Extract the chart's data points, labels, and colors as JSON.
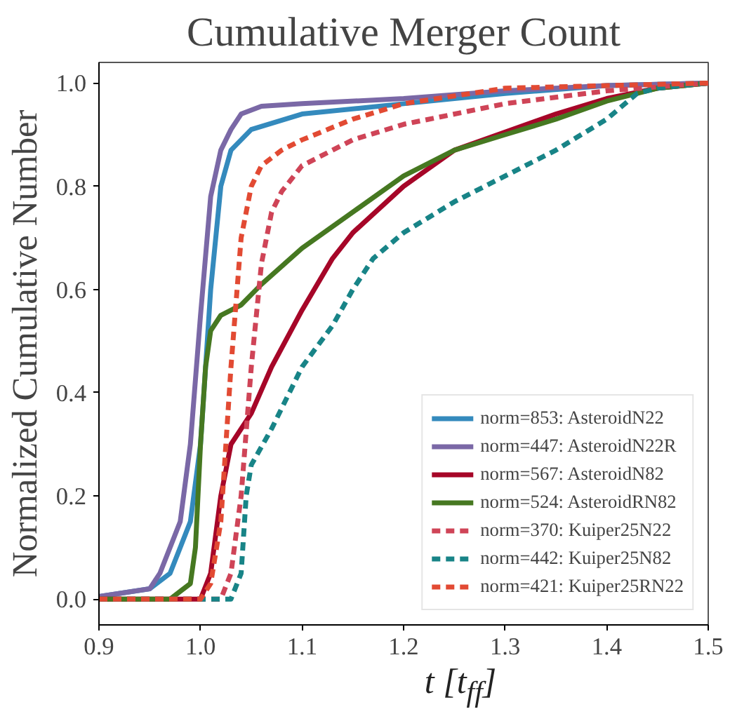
{
  "chart_data": {
    "type": "line",
    "title": "Cumulative Merger Count",
    "xlabel": "t [t$_{ff}$]",
    "ylabel": "Normalized Cumulative Number",
    "xlim": [
      0.9,
      1.5
    ],
    "ylim": [
      -0.05,
      1.04
    ],
    "xticks": [
      0.9,
      {
        "value": 1,
        "label": "1.0"
      },
      1.1,
      1.2,
      1.3,
      1.4,
      1.5
    ],
    "yticks": [
      {
        "value": 0,
        "label": "0.0"
      },
      0.2,
      0.4,
      0.6,
      0.8,
      {
        "value": 1,
        "label": "1.0"
      }
    ],
    "grid": false,
    "legend": "bottom right",
    "series": [
      {
        "name": "norm=853: AsteroidN22",
        "color": "#348abd",
        "line_style": "solid",
        "x": [
          0.9,
          0.95,
          0.97,
          0.99,
          1.0,
          1.01,
          1.02,
          1.03,
          1.05,
          1.1,
          1.2,
          1.3,
          1.4,
          1.5
        ],
        "values": [
          0.005,
          0.02,
          0.05,
          0.15,
          0.3,
          0.6,
          0.8,
          0.87,
          0.91,
          0.94,
          0.96,
          0.98,
          0.995,
          1.0
        ]
      },
      {
        "name": "norm=447: AsteroidN22R",
        "color": "#7a68a6",
        "line_style": "solid",
        "x": [
          0.9,
          0.95,
          0.96,
          0.98,
          0.99,
          1.0,
          1.01,
          1.02,
          1.03,
          1.04,
          1.06,
          1.1,
          1.2,
          1.3,
          1.4,
          1.5
        ],
        "values": [
          0.005,
          0.02,
          0.05,
          0.15,
          0.3,
          0.55,
          0.78,
          0.87,
          0.91,
          0.94,
          0.955,
          0.96,
          0.97,
          0.985,
          0.995,
          1.0
        ]
      },
      {
        "name": "norm=567: AsteroidN82",
        "color": "#a60628",
        "line_style": "solid",
        "x": [
          0.9,
          1.0,
          1.01,
          1.02,
          1.03,
          1.05,
          1.07,
          1.1,
          1.13,
          1.15,
          1.2,
          1.25,
          1.3,
          1.35,
          1.4,
          1.45,
          1.5
        ],
        "values": [
          0.0,
          0.0,
          0.05,
          0.2,
          0.3,
          0.36,
          0.45,
          0.56,
          0.66,
          0.71,
          0.8,
          0.87,
          0.905,
          0.94,
          0.97,
          0.99,
          1.0
        ]
      },
      {
        "name": "norm=524: AsteroidRN82",
        "color": "#467821",
        "line_style": "solid",
        "x": [
          0.9,
          0.97,
          0.99,
          0.995,
          1.0,
          1.005,
          1.01,
          1.02,
          1.04,
          1.06,
          1.1,
          1.15,
          1.2,
          1.25,
          1.3,
          1.35,
          1.4,
          1.45,
          1.5
        ],
        "values": [
          0.0,
          0.0,
          0.03,
          0.1,
          0.3,
          0.45,
          0.52,
          0.55,
          0.57,
          0.61,
          0.68,
          0.75,
          0.82,
          0.87,
          0.9,
          0.93,
          0.965,
          0.99,
          1.0
        ]
      },
      {
        "name": "norm=370: Kuiper25N22",
        "color": "#cf4457",
        "line_style": "dashed",
        "x": [
          0.9,
          1.02,
          1.03,
          1.04,
          1.05,
          1.06,
          1.07,
          1.08,
          1.1,
          1.15,
          1.2,
          1.3,
          1.4,
          1.5
        ],
        "values": [
          0.0,
          0.0,
          0.05,
          0.2,
          0.45,
          0.65,
          0.75,
          0.79,
          0.84,
          0.89,
          0.92,
          0.96,
          0.985,
          1.0
        ]
      },
      {
        "name": "norm=442: Kuiper25N82",
        "color": "#188487",
        "line_style": "dashed",
        "x": [
          0.9,
          1.03,
          1.04,
          1.045,
          1.05,
          1.07,
          1.1,
          1.13,
          1.15,
          1.17,
          1.2,
          1.25,
          1.3,
          1.35,
          1.4,
          1.43,
          1.45,
          1.5
        ],
        "values": [
          0.0,
          0.0,
          0.05,
          0.2,
          0.26,
          0.33,
          0.45,
          0.53,
          0.6,
          0.66,
          0.71,
          0.77,
          0.82,
          0.87,
          0.93,
          0.98,
          0.99,
          1.0
        ]
      },
      {
        "name": "norm=421: Kuiper25RN22",
        "color": "#e24a33",
        "line_style": "dashed",
        "x": [
          0.9,
          1.0,
          1.01,
          1.02,
          1.03,
          1.04,
          1.05,
          1.06,
          1.08,
          1.1,
          1.15,
          1.2,
          1.3,
          1.5
        ],
        "values": [
          0.0,
          0.0,
          0.03,
          0.15,
          0.45,
          0.7,
          0.8,
          0.84,
          0.87,
          0.89,
          0.93,
          0.96,
          0.99,
          1.0
        ]
      }
    ]
  }
}
